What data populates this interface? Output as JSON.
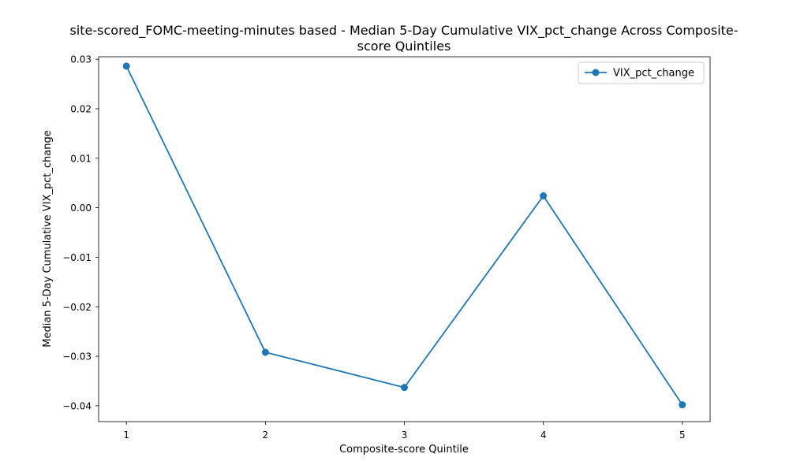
{
  "chart_data": {
    "type": "line",
    "title_line1": "site-scored_FOMC-meeting-minutes based - Median 5-Day Cumulative VIX_pct_change Across Composite-",
    "title_line2": "score Quintiles",
    "xlabel": "Composite-score Quintile",
    "ylabel": "Median 5-Day Cumulative VIX_pct_change",
    "x": [
      1,
      2,
      3,
      4,
      5
    ],
    "x_tick_labels": [
      "1",
      "2",
      "3",
      "4",
      "5"
    ],
    "y_ticks": [
      0.03,
      0.02,
      0.01,
      0.0,
      -0.01,
      -0.02,
      -0.03,
      -0.04
    ],
    "y_tick_labels": [
      "0.03",
      "0.02",
      "0.01",
      "0.00",
      "−0.01",
      "−0.02",
      "−0.03",
      "−0.04"
    ],
    "xlim": [
      0.8,
      5.2
    ],
    "ylim": [
      -0.0432,
      0.0305
    ],
    "grid": false,
    "legend": "top-right",
    "series": [
      {
        "name": "VIX_pct_change",
        "color": "#1f77b4",
        "marker": "circle",
        "values": [
          0.0286,
          -0.0292,
          -0.0363,
          0.0024,
          -0.0398
        ]
      }
    ]
  }
}
